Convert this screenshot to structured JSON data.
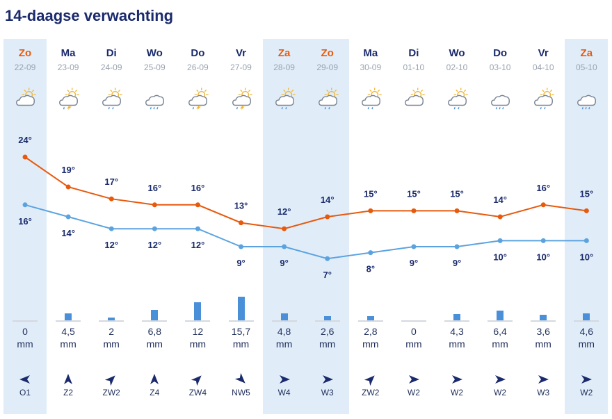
{
  "title": "14-daagse verwachting",
  "colors": {
    "max_line": "#e8590c",
    "min_line": "#5ba3e0",
    "precip_bar": "#4a90d9",
    "highlight": "#e0edf9",
    "weekend_text": "#e8590c",
    "text": "#1a2a6c"
  },
  "unit": "mm",
  "days": [
    {
      "name": "Zo",
      "date": "22-09",
      "weekend": true,
      "highlight": true,
      "icon": "sun-cloud-icon",
      "precip": "0",
      "wind_dir": "O",
      "wind_label": "O1"
    },
    {
      "name": "Ma",
      "date": "23-09",
      "weekend": false,
      "highlight": false,
      "icon": "thunder-rain-sun-icon",
      "precip": "4,5",
      "wind_dir": "Z",
      "wind_label": "Z2"
    },
    {
      "name": "Di",
      "date": "24-09",
      "weekend": false,
      "highlight": false,
      "icon": "light-rain-sun-icon",
      "precip": "2",
      "wind_dir": "ZW",
      "wind_label": "ZW2"
    },
    {
      "name": "Wo",
      "date": "25-09",
      "weekend": false,
      "highlight": false,
      "icon": "rain-cloud-icon",
      "precip": "6,8",
      "wind_dir": "Z",
      "wind_label": "Z4"
    },
    {
      "name": "Do",
      "date": "26-09",
      "weekend": false,
      "highlight": false,
      "icon": "thunder-rain-sun-icon",
      "precip": "12",
      "wind_dir": "ZW",
      "wind_label": "ZW4"
    },
    {
      "name": "Vr",
      "date": "27-09",
      "weekend": false,
      "highlight": false,
      "icon": "thunder-rain-sun-icon",
      "precip": "15,7",
      "wind_dir": "NW",
      "wind_label": "NW5"
    },
    {
      "name": "Za",
      "date": "28-09",
      "weekend": true,
      "highlight": true,
      "icon": "light-rain-sun-icon",
      "precip": "4,8",
      "wind_dir": "W",
      "wind_label": "W4"
    },
    {
      "name": "Zo",
      "date": "29-09",
      "weekend": true,
      "highlight": true,
      "icon": "light-rain-sun-icon",
      "precip": "2,6",
      "wind_dir": "W",
      "wind_label": "W3"
    },
    {
      "name": "Ma",
      "date": "30-09",
      "weekend": false,
      "highlight": false,
      "icon": "light-rain-sun-icon",
      "precip": "2,8",
      "wind_dir": "ZW",
      "wind_label": "ZW2"
    },
    {
      "name": "Di",
      "date": "01-10",
      "weekend": false,
      "highlight": false,
      "icon": "sun-cloud-icon",
      "precip": "0",
      "wind_dir": "W",
      "wind_label": "W2"
    },
    {
      "name": "Wo",
      "date": "02-10",
      "weekend": false,
      "highlight": false,
      "icon": "light-rain-sun-icon",
      "precip": "4,3",
      "wind_dir": "W",
      "wind_label": "W2"
    },
    {
      "name": "Do",
      "date": "03-10",
      "weekend": false,
      "highlight": false,
      "icon": "rain-cloud-icon",
      "precip": "6,4",
      "wind_dir": "W",
      "wind_label": "W2"
    },
    {
      "name": "Vr",
      "date": "04-10",
      "weekend": false,
      "highlight": false,
      "icon": "light-rain-sun-icon",
      "precip": "3,6",
      "wind_dir": "W",
      "wind_label": "W3"
    },
    {
      "name": "Za",
      "date": "05-10",
      "weekend": true,
      "highlight": true,
      "icon": "rain-cloud-icon",
      "precip": "4,6",
      "wind_dir": "W",
      "wind_label": "W2"
    }
  ],
  "chart_data": {
    "type": "line",
    "title": "14-daagse verwachting",
    "x": [
      "22-09",
      "23-09",
      "24-09",
      "25-09",
      "26-09",
      "27-09",
      "28-09",
      "29-09",
      "30-09",
      "01-10",
      "02-10",
      "03-10",
      "04-10",
      "05-10"
    ],
    "series": [
      {
        "key": "max",
        "values": [
          24,
          19,
          17,
          16,
          16,
          13,
          12,
          14,
          15,
          15,
          15,
          14,
          16,
          15
        ],
        "color": "#e8590c"
      },
      {
        "key": "min",
        "values": [
          16,
          14,
          12,
          12,
          12,
          9,
          9,
          7,
          8,
          9,
          9,
          10,
          10,
          10
        ],
        "color": "#5ba3e0"
      }
    ],
    "max_labels": [
      "24°",
      "19°",
      "17°",
      "16°",
      "16°",
      "13°",
      "12°",
      "14°",
      "15°",
      "15°",
      "15°",
      "14°",
      "16°",
      "15°"
    ],
    "min_labels": [
      "16°",
      "14°",
      "12°",
      "12°",
      "12°",
      "9°",
      "9°",
      "7°",
      "8°",
      "9°",
      "9°",
      "10°",
      "10°",
      "10°"
    ],
    "precipitation_mm": [
      0,
      4.5,
      2,
      6.8,
      12,
      15.7,
      4.8,
      2.6,
      2.8,
      0,
      4.3,
      6.4,
      3.6,
      4.6
    ],
    "grid": false
  }
}
